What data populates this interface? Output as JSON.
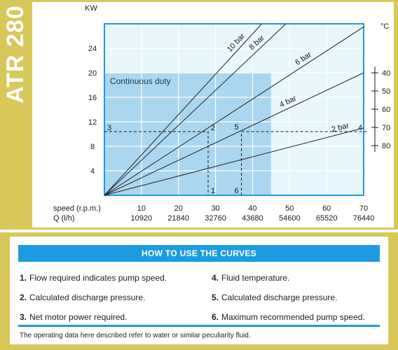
{
  "side_title": "ATR 280",
  "chart_data": {
    "type": "line",
    "y_axis_label": "KW",
    "y_ticks": [
      4,
      8,
      12,
      16,
      20,
      24
    ],
    "ylim": [
      0,
      28
    ],
    "xlim": [
      0,
      70
    ],
    "x_row_labels": {
      "speed": "speed (r.p.m.)",
      "q": "Q (l/h)"
    },
    "x_ticks": [
      {
        "speed": "10",
        "q": "10920"
      },
      {
        "speed": "20",
        "q": "21840"
      },
      {
        "speed": "30",
        "q": "32760"
      },
      {
        "speed": "40",
        "q": "43680"
      },
      {
        "speed": "50",
        "q": "54600"
      },
      {
        "speed": "60",
        "q": "65520"
      },
      {
        "speed": "70",
        "q": "76440"
      }
    ],
    "temperature_axis": {
      "label": "°C",
      "ticks": [
        "40",
        "50",
        "60",
        "70",
        "80"
      ]
    },
    "continuous_duty": {
      "label": "Continuous duty",
      "x_max": 45,
      "y_max": 20
    },
    "series": [
      {
        "name": "10 bar",
        "x": [
          0,
          42.5
        ],
        "y": [
          0,
          28
        ]
      },
      {
        "name": "8 bar",
        "x": [
          0,
          49
        ],
        "y": [
          0,
          28
        ]
      },
      {
        "name": "6 bar",
        "x": [
          0,
          70
        ],
        "y": [
          0,
          27.5
        ]
      },
      {
        "name": "4 bar",
        "x": [
          0,
          70
        ],
        "y": [
          0,
          20
        ]
      },
      {
        "name": "2 bar",
        "x": [
          0,
          70
        ],
        "y": [
          0,
          11
        ]
      }
    ],
    "markers": [
      {
        "label": "3",
        "x": 0,
        "y": 10.4
      },
      {
        "label": "2",
        "x": 28,
        "y": 10.4
      },
      {
        "label": "1",
        "x": 28,
        "y": 0
      },
      {
        "label": "5",
        "x": 37,
        "y": 10.4
      },
      {
        "label": "6",
        "x": 37,
        "y": 0
      },
      {
        "label": "4",
        "x": 70,
        "y": 10.4
      }
    ]
  },
  "howto": {
    "title": "HOW TO USE THE CURVES",
    "items": [
      {
        "num": "1.",
        "text": "Flow required indicates pump speed."
      },
      {
        "num": "2.",
        "text": "Calculated discharge pressure."
      },
      {
        "num": "3.",
        "text": "Net motor power required."
      },
      {
        "num": "4.",
        "text": "Fluid temperature."
      },
      {
        "num": "5.",
        "text": "Calculated discharge pressure."
      },
      {
        "num": "6.",
        "text": "Maximum recommended pump speed."
      }
    ],
    "note": "The operating data here described refer to water or similar peculiarity fluid."
  },
  "colors": {
    "panel": "#d8c85a",
    "accent_blue": "#1e9be0",
    "plot_background": "#e9f6fc",
    "duty_fill": "#aad7ef"
  }
}
